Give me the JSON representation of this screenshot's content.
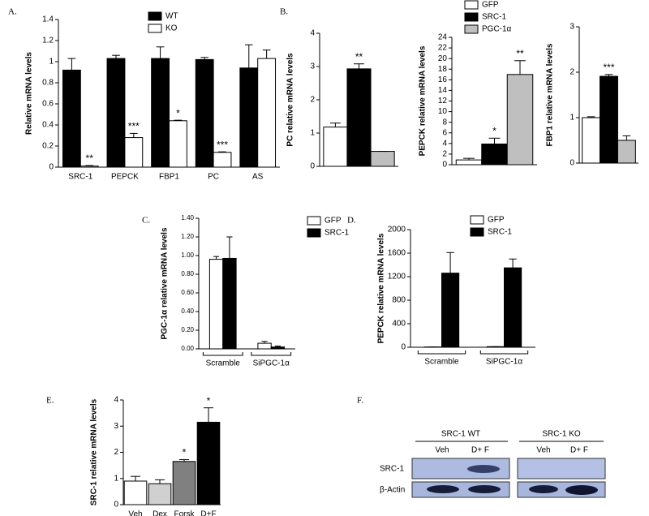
{
  "chart_data": [
    {
      "type": "bar",
      "label": "A.",
      "ylabel": "Relative mRNA levels",
      "categories": [
        "SRC-1",
        "PEPCK",
        "FBP1",
        "PC",
        "AS"
      ],
      "series": [
        {
          "name": "WT",
          "color": "#000000",
          "values": [
            0.92,
            1.03,
            1.03,
            1.02,
            0.94
          ],
          "errors": [
            0.11,
            0.03,
            0.11,
            0.02,
            0.22
          ],
          "annotations": [
            null,
            null,
            null,
            null,
            null
          ]
        },
        {
          "name": "KO",
          "color": "#ffffff",
          "values": [
            0.01,
            0.28,
            0.44,
            0.14,
            1.03
          ],
          "errors": [
            0.005,
            0.04,
            0.005,
            0.005,
            0.08
          ],
          "annotations": [
            "**",
            "***",
            "*",
            "***",
            null
          ]
        }
      ],
      "ylim": [
        0,
        1.4
      ],
      "yticks": [
        0,
        0.2,
        0.4,
        0.6,
        0.8,
        1,
        1.2,
        1.4
      ]
    },
    {
      "type": "bar",
      "label": "B.",
      "ylabel": "PC relative mRNA levels",
      "series": [
        {
          "name": "GFP",
          "color": "#ffffff",
          "values": [
            1.18
          ],
          "errors": [
            0.12
          ],
          "annotations": [
            null
          ]
        },
        {
          "name": "SRC-1",
          "color": "#000000",
          "values": [
            2.93
          ],
          "errors": [
            0.15
          ],
          "annotations": [
            "**"
          ]
        },
        {
          "name": "PGC-1α",
          "color": "#bfbfbf",
          "values": [
            0.45
          ],
          "errors": [
            0
          ],
          "annotations": [
            null
          ]
        }
      ],
      "ylim": [
        0,
        4
      ],
      "yticks": [
        0,
        1,
        2,
        3,
        4
      ]
    },
    {
      "type": "bar",
      "ylabel": "PEPCK relative mRNA levels",
      "series": [
        {
          "color": "#ffffff",
          "values": [
            0.9
          ],
          "errors": [
            0.3
          ],
          "annotations": [
            null
          ]
        },
        {
          "color": "#000000",
          "values": [
            3.9
          ],
          "errors": [
            1.1
          ],
          "annotations": [
            "*"
          ]
        },
        {
          "color": "#bfbfbf",
          "values": [
            17
          ],
          "errors": [
            2.6
          ],
          "annotations": [
            "**"
          ]
        }
      ],
      "ylim": [
        0,
        24
      ],
      "yticks": [
        0,
        2,
        4,
        6,
        8,
        10,
        12,
        14,
        16,
        18,
        20,
        22,
        24
      ]
    },
    {
      "type": "bar",
      "ylabel": "FBP1 relative mRNA levels",
      "series": [
        {
          "color": "#ffffff",
          "values": [
            1.0
          ],
          "errors": [
            0.02
          ],
          "annotations": [
            null
          ]
        },
        {
          "color": "#000000",
          "values": [
            1.91
          ],
          "errors": [
            0.04
          ],
          "annotations": [
            "***"
          ]
        },
        {
          "color": "#bfbfbf",
          "values": [
            0.5
          ],
          "errors": [
            0.1
          ],
          "annotations": [
            null
          ]
        }
      ],
      "ylim": [
        0,
        3
      ],
      "yticks": [
        0,
        1,
        2,
        3
      ]
    },
    {
      "type": "bar",
      "label": "C.",
      "ylabel": "PGC-1α relative mRNA levels",
      "categories": [
        "Scramble",
        "SiPGC-1α"
      ],
      "series": [
        {
          "name": "GFP",
          "color": "#ffffff",
          "values": [
            0.96,
            0.06
          ],
          "errors": [
            0.03,
            0.02
          ],
          "annotations": [
            null,
            null
          ]
        },
        {
          "name": "SRC-1",
          "color": "#000000",
          "values": [
            0.97,
            0.02
          ],
          "errors": [
            0.23,
            0.01
          ],
          "annotations": [
            null,
            null
          ]
        }
      ],
      "ylim": [
        0,
        1.4
      ],
      "yticks": [
        {
          "value": 0,
          "label": "0.00"
        },
        {
          "value": 0.2,
          "label": "0.20"
        },
        {
          "value": 0.4,
          "label": "0.40"
        },
        {
          "value": 0.6,
          "label": "0.60"
        },
        {
          "value": 0.8,
          "label": "0.80"
        },
        {
          "value": 1,
          "label": "1.00"
        },
        {
          "value": 1.2,
          "label": "1.20"
        },
        {
          "value": 1.4,
          "label": "1.40"
        }
      ]
    },
    {
      "type": "bar",
      "label": "D.",
      "ylabel": "PEPCK relative mRNA levels",
      "categories": [
        "Scramble",
        "SiPGC-1α"
      ],
      "series": [
        {
          "name": "GFP",
          "color": "#ffffff",
          "values": [
            5,
            10
          ],
          "errors": [
            0,
            0
          ],
          "annotations": [
            null,
            null
          ]
        },
        {
          "name": "SRC-1",
          "color": "#000000",
          "values": [
            1260,
            1350
          ],
          "errors": [
            350,
            150
          ],
          "annotations": [
            null,
            null
          ]
        }
      ],
      "ylim": [
        0,
        2000
      ],
      "yticks": [
        0,
        400,
        800,
        1200,
        1600,
        2000
      ]
    },
    {
      "type": "bar",
      "label": "E.",
      "ylabel": "SRC-1 relative mRNA levels",
      "categories": [
        "Veh",
        "Dex",
        "Forsk",
        "D+F"
      ],
      "values": [
        0.9,
        0.8,
        1.65,
        3.15
      ],
      "errors": [
        0.18,
        0.15,
        0.07,
        0.55
      ],
      "annotations": [
        null,
        null,
        "*",
        "*"
      ],
      "colors": [
        "#ffffff",
        "#d0d0d0",
        "#808080",
        "#000000"
      ],
      "ylim": [
        0,
        4
      ],
      "yticks": [
        0,
        1,
        2,
        3,
        4
      ]
    }
  ],
  "blot": {
    "label": "F.",
    "groups": [
      "SRC-1 WT",
      "SRC-1 KO"
    ],
    "lanes": [
      "Veh",
      "D+ F",
      "Veh",
      "D+ F"
    ],
    "rows": [
      "SRC-1",
      "β-Actin"
    ]
  }
}
